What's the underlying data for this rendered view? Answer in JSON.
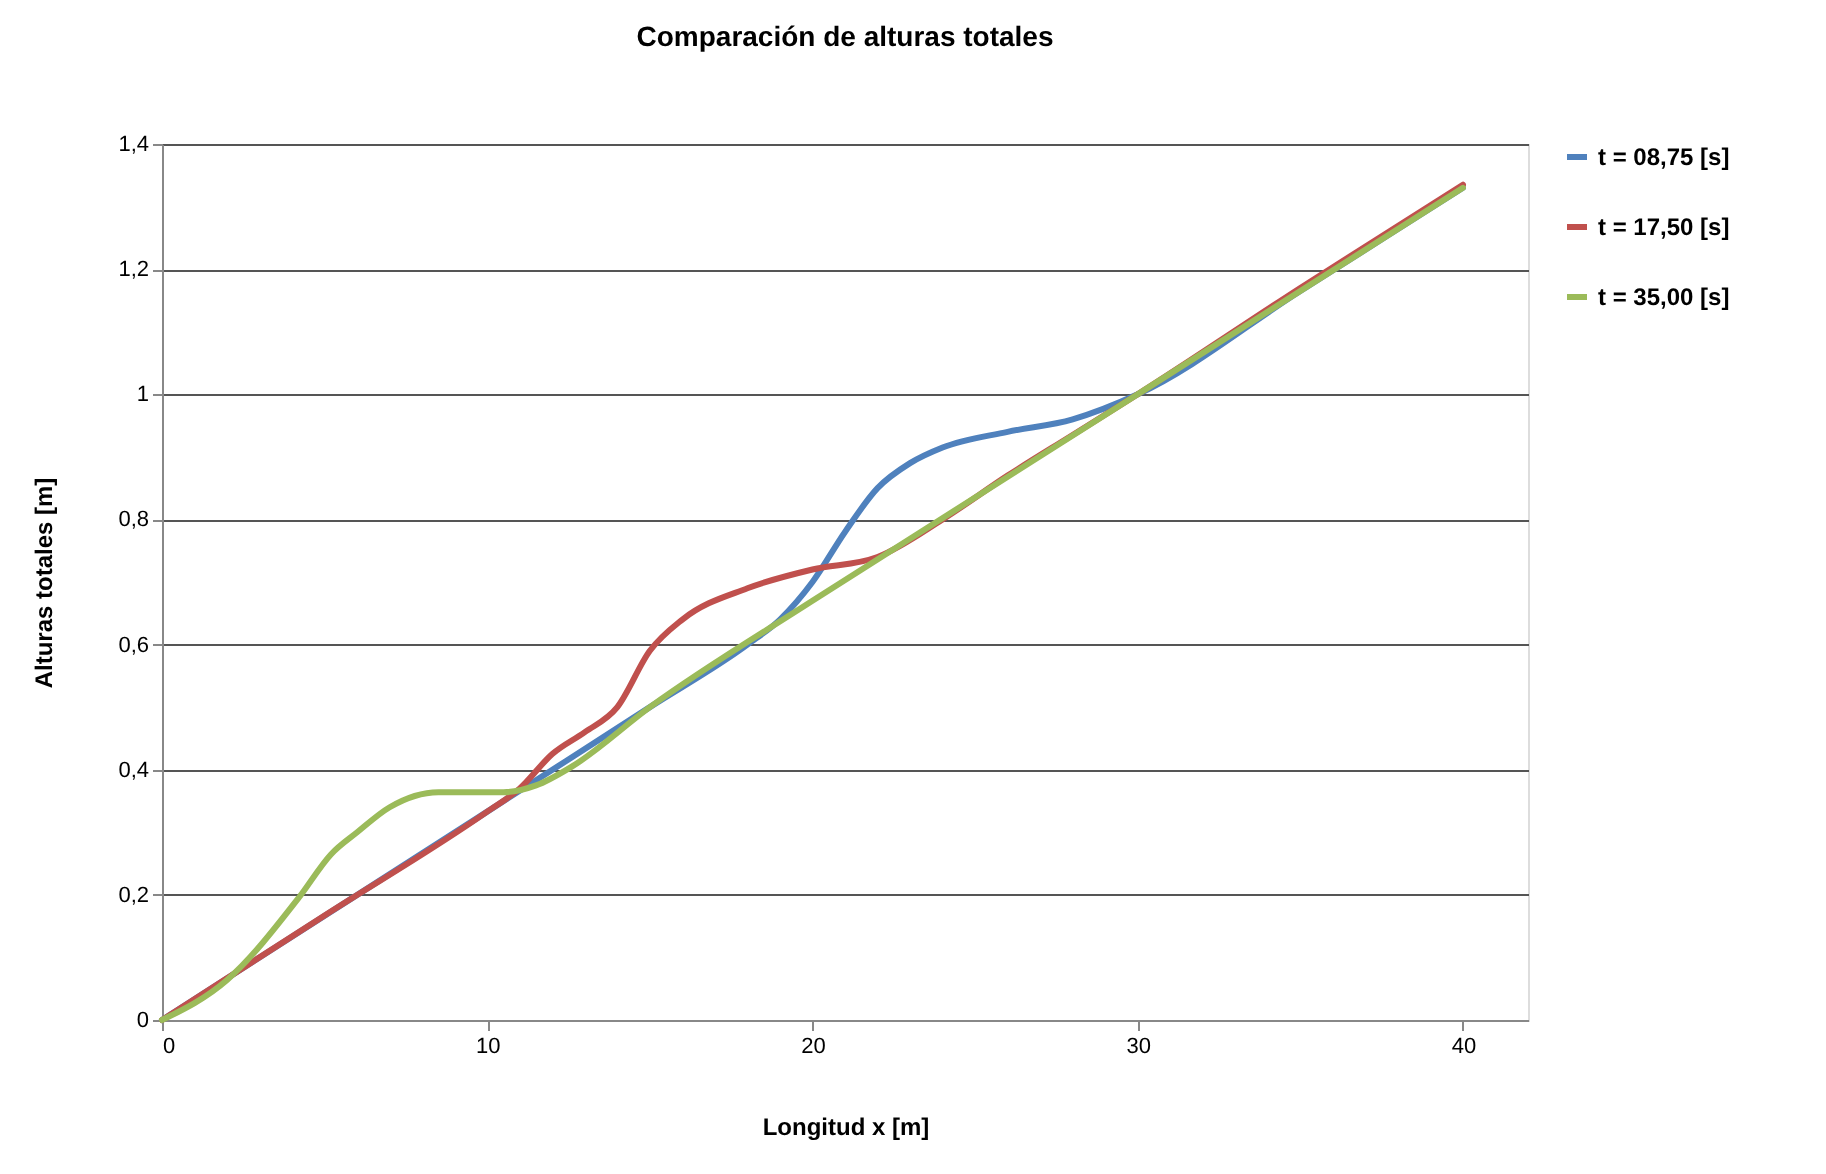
{
  "chart_data": {
    "type": "line",
    "title": "Comparación  de alturas totales",
    "xlabel": "Longitud x [m]",
    "ylabel": "Alturas totales [m]",
    "xlim": [
      0,
      42
    ],
    "xticks": [
      0,
      10,
      20,
      30,
      40
    ],
    "ylim": [
      0,
      1.4
    ],
    "yticks": [
      0,
      {
        "value": 0.2,
        "label": "0,2"
      },
      {
        "value": 0.4,
        "label": "0,4"
      },
      {
        "value": 0.6,
        "label": "0,6"
      },
      {
        "value": 0.8,
        "label": "0,8"
      },
      1,
      {
        "value": 1.2,
        "label": "1,2"
      },
      {
        "value": 1.4,
        "label": "1,4"
      }
    ],
    "grid": "y",
    "legend": "right",
    "marker": "none",
    "line_style": "solid",
    "series": [
      {
        "name": "t = 08,75 [s]",
        "color": "#4f81bd",
        "x": [
          0,
          10,
          15,
          18,
          19,
          20,
          21,
          22,
          23,
          24,
          26,
          28,
          30,
          35,
          40
        ],
        "values": [
          0,
          0.333,
          0.5,
          0.6,
          0.64,
          0.7,
          0.78,
          0.85,
          0.89,
          0.915,
          0.94,
          0.96,
          1.0,
          1.165,
          1.33
        ]
      },
      {
        "name": "t = 17,50 [s]",
        "color": "#c0504d",
        "x": [
          0,
          5,
          10,
          11,
          12,
          13,
          14,
          15,
          16,
          18,
          20,
          22,
          24,
          26,
          28,
          30,
          35,
          40
        ],
        "values": [
          0,
          0.167,
          0.333,
          0.37,
          0.425,
          0.46,
          0.5,
          0.59,
          0.64,
          0.69,
          0.72,
          0.74,
          0.8,
          0.87,
          0.935,
          1.0,
          1.17,
          1.335
        ]
      },
      {
        "name": "t = 35,00 [s]",
        "color": "#9bbb59",
        "x": [
          0,
          2,
          4.2,
          5.2,
          6,
          7,
          8.5,
          10.5,
          11.5,
          12.6,
          15,
          20,
          25,
          30,
          35,
          40
        ],
        "values": [
          0,
          0.064,
          0.195,
          0.265,
          0.3,
          0.34,
          0.364,
          0.364,
          0.375,
          0.405,
          0.5,
          0.67,
          0.835,
          1.0,
          1.165,
          1.33
        ]
      }
    ]
  }
}
